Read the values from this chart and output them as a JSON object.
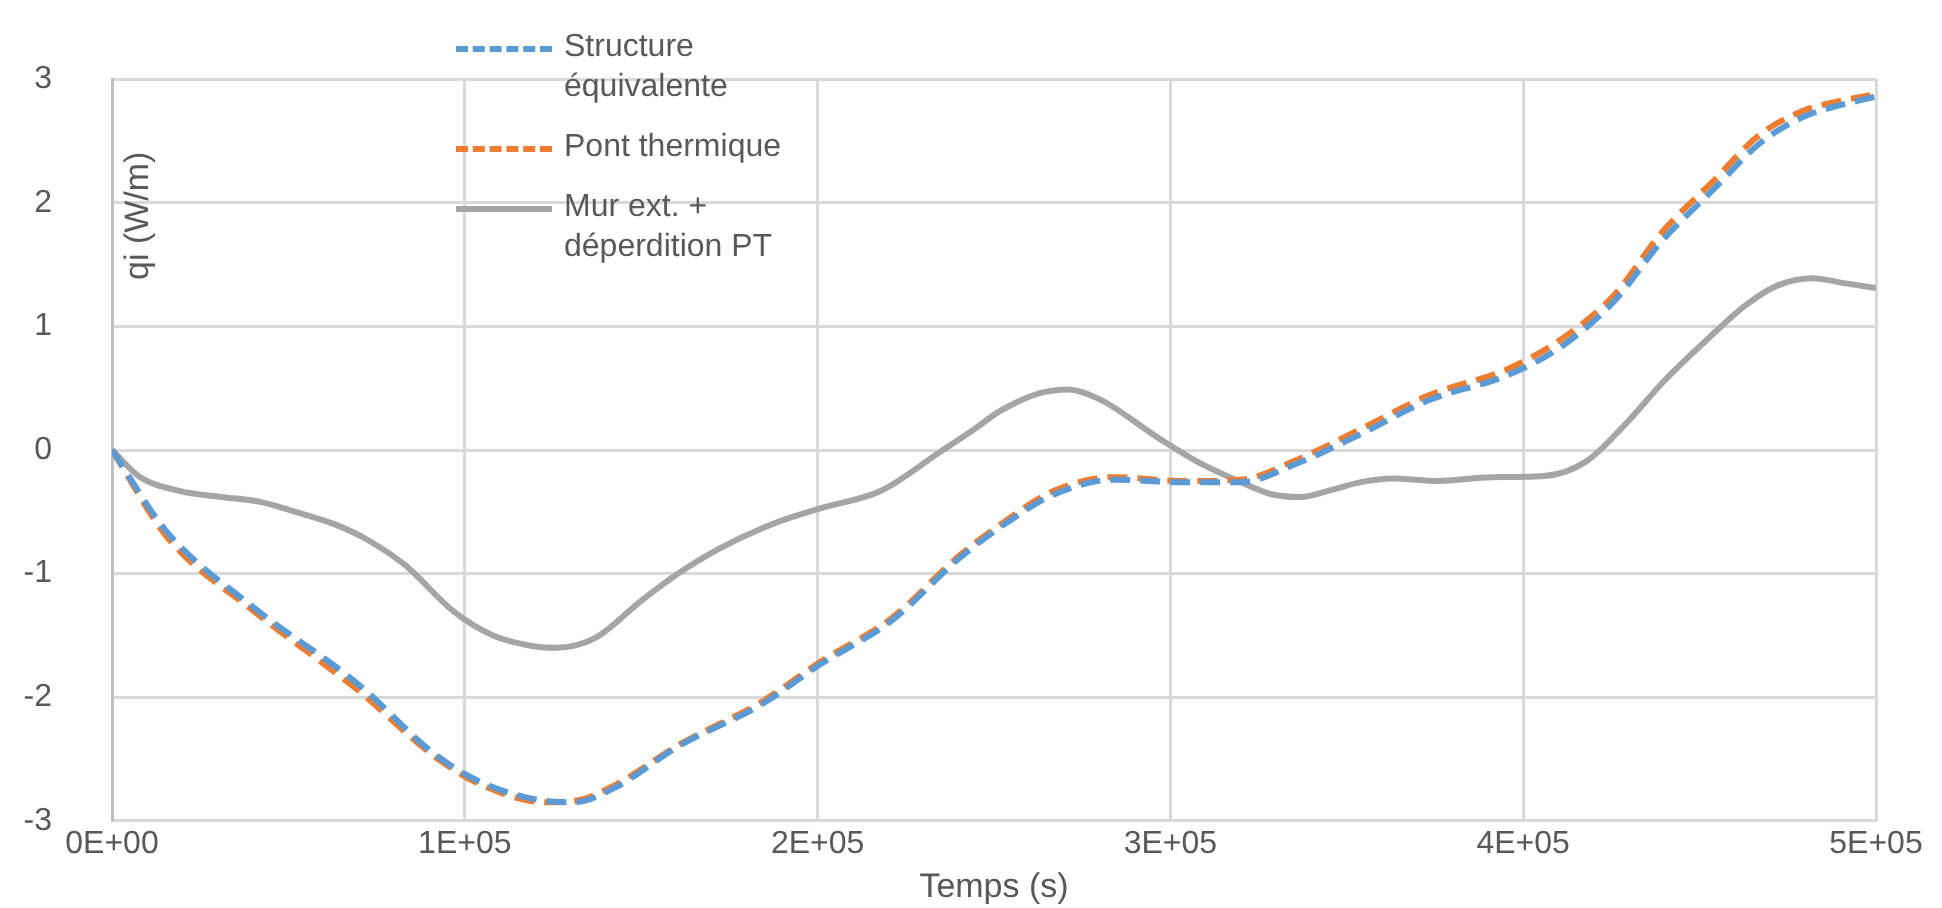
{
  "chart_data": {
    "type": "line",
    "xlabel": "Temps (s)",
    "ylabel": "qi (W/m)",
    "xlim": [
      0,
      500000
    ],
    "xticks": [
      {
        "value": 0,
        "label": "0E+00"
      },
      {
        "value": 100000,
        "label": "1E+05"
      },
      {
        "value": 200000,
        "label": "2E+05"
      },
      {
        "value": 300000,
        "label": "3E+05"
      },
      {
        "value": 400000,
        "label": "4E+05"
      },
      {
        "value": 500000,
        "label": "5E+05"
      }
    ],
    "ylim": [
      -3,
      3
    ],
    "yticks": [
      -3,
      -2,
      -1,
      0,
      1,
      2,
      3
    ],
    "grid": true,
    "legend": "top",
    "marker": "none",
    "series": [
      {
        "name": "Structure équivalente",
        "color": "#5b9bd5",
        "line_style": "dashed",
        "x": [
          0,
          15500,
          40000,
          70000,
          91000,
          104000,
          123000,
          131000,
          142000,
          161000,
          184000,
          201000,
          221000,
          240000,
          252000,
          267000,
          284000,
          303000,
          320000,
          335000,
          354000,
          373000,
          396000,
          411000,
          426000,
          439000,
          454000,
          467000,
          479000,
          486000,
          500000
        ],
        "values": [
          0,
          -0.66,
          -1.27,
          -1.9,
          -2.45,
          -2.68,
          -2.84,
          -2.85,
          -2.74,
          -2.39,
          -2.06,
          -1.73,
          -1.38,
          -0.88,
          -0.62,
          -0.36,
          -0.24,
          -0.26,
          -0.26,
          -0.12,
          0.13,
          0.4,
          0.61,
          0.84,
          1.21,
          1.68,
          2.11,
          2.48,
          2.69,
          2.76,
          2.86
        ]
      },
      {
        "name": "Pont thermique",
        "color": "#ed7d31",
        "line_style": "dashed",
        "x": [
          0,
          15500,
          40000,
          70000,
          91000,
          104000,
          123000,
          131000,
          142000,
          161000,
          184000,
          201000,
          221000,
          240000,
          252000,
          267000,
          284000,
          303000,
          320000,
          335000,
          354000,
          373000,
          396000,
          411000,
          426000,
          439000,
          454000,
          467000,
          479000,
          486000,
          500000
        ],
        "values": [
          0,
          -0.7,
          -1.3,
          -1.95,
          -2.47,
          -2.7,
          -2.85,
          -2.84,
          -2.72,
          -2.38,
          -2.04,
          -1.71,
          -1.36,
          -0.86,
          -0.6,
          -0.33,
          -0.22,
          -0.25,
          -0.24,
          -0.09,
          0.17,
          0.44,
          0.66,
          0.9,
          1.26,
          1.75,
          2.18,
          2.55,
          2.74,
          2.8,
          2.88
        ]
      },
      {
        "name": "Mur ext. + déperdition PT",
        "color": "#a5a5a5",
        "line_style": "solid",
        "x": [
          0,
          8000,
          19000,
          31000,
          42000,
          52000,
          63000,
          72000,
          83000,
          97000,
          108000,
          120000,
          126000,
          137000,
          150000,
          161000,
          172000,
          188000,
          201000,
          218000,
          235000,
          244000,
          252000,
          263000,
          271000,
          280000,
          297000,
          308000,
          320000,
          329000,
          337000,
          346000,
          354000,
          363000,
          376000,
          391000,
          406000,
          418000,
          429000,
          440000,
          452000,
          463000,
          472000,
          482000,
          491000,
          500000
        ],
        "values": [
          0,
          -0.22,
          -0.33,
          -0.38,
          -0.42,
          -0.5,
          -0.6,
          -0.72,
          -0.93,
          -1.31,
          -1.5,
          -1.59,
          -1.6,
          -1.52,
          -1.22,
          -0.99,
          -0.8,
          -0.59,
          -0.47,
          -0.33,
          -0.01,
          0.16,
          0.32,
          0.46,
          0.49,
          0.41,
          0.09,
          -0.1,
          -0.26,
          -0.36,
          -0.38,
          -0.32,
          -0.26,
          -0.23,
          -0.25,
          -0.22,
          -0.21,
          -0.09,
          0.21,
          0.56,
          0.89,
          1.17,
          1.33,
          1.39,
          1.35,
          1.31
        ]
      }
    ]
  }
}
